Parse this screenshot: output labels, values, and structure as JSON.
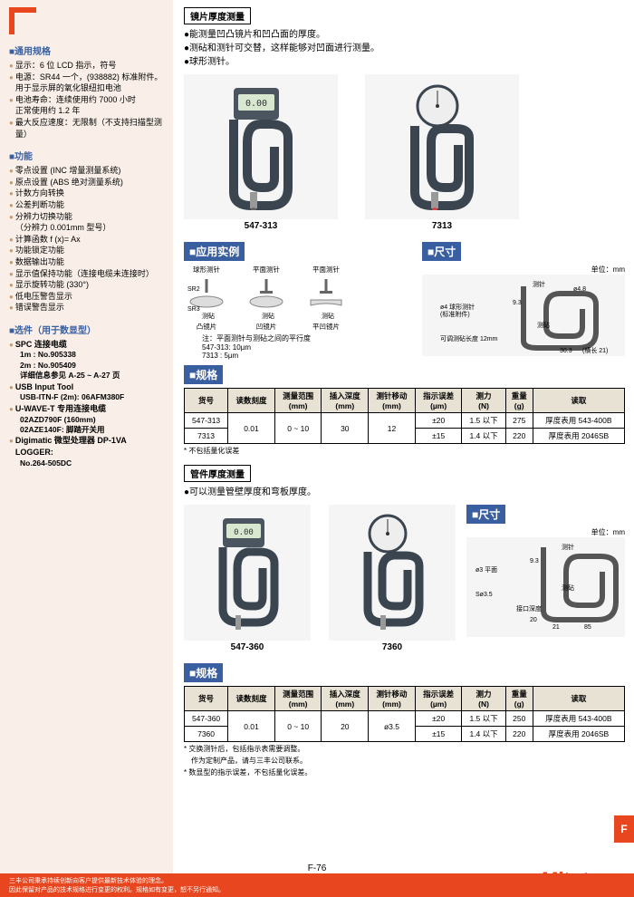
{
  "left": {
    "general_title": "■通用规格",
    "general": [
      {
        "label": "显示：",
        "text": "6 位 LCD 指示，符号"
      },
      {
        "label": "电源：",
        "text": "SR44 一个，(938882) 标准附件。用于显示屏的氧化银纽扣电池"
      },
      {
        "label": "电池寿命：",
        "text": "连续使用约 7000 小时\n正常使用约 1.2 年"
      },
      {
        "label": "最大反应速度：",
        "text": "无限制（不支持扫描型测量）"
      }
    ],
    "func_title": "■功能",
    "func": [
      "零点设置 (INC 增量测量系统)",
      "原点设置 (ABS 绝对测量系统)",
      "计数方向转换",
      "公差判断功能",
      "分辨力切换功能\n（分辨力 0.001mm 型号）",
      "计算函数 f (x)= Ax",
      "功能锁定功能",
      "数据输出功能",
      "显示值保持功能（连接电缆未连接时）",
      "显示旋转功能 (330°)",
      "低电压警告显示",
      "错误警告显示"
    ],
    "opt_title": "■选件（用于数显型）",
    "opt": [
      {
        "b": "SPC 连接电缆",
        "subs": [
          "1m : No.905338",
          "2m : No.905409",
          "详细信息参见 A-25 ~ A-27 页"
        ]
      },
      {
        "b": "USB Input Tool",
        "subs": [
          "USB-ITN-F (2m): 06AFM380F"
        ]
      },
      {
        "b": "U-WAVE-T 专用连接电缆",
        "subs": [
          "02AZD790F (160mm)",
          "02AZE140F: 脚踏开关用"
        ]
      },
      {
        "b": "Digimatic 微型处理器 DP-1VA LOGGER:",
        "subs": [
          "No.264-505DC"
        ]
      }
    ]
  },
  "lens": {
    "box_title": "镜片厚度测量",
    "desc": [
      "●能测量凹凸镜片和凹凸面的厚度。",
      "●测砧和测针可交替，这样能够对凹面进行测量。",
      "●球形测针。"
    ],
    "p1": "547-313",
    "p2": "7313",
    "app_title": "■应用实例",
    "app_labels": {
      "a": "球形测针",
      "b": "平面测针",
      "c": "平面测针",
      "sr2": "SR2",
      "sr3": "SR3",
      "t1": "测砧",
      "t2": "测砧",
      "t3": "测砧",
      "l1": "凸镜片",
      "l2": "凹镜片",
      "l3": "平凹镜片"
    },
    "app_note": "注：平面测针与测砧之间的平行度\n547-313: 10µm\n7313 : 5µm",
    "dim_title": "■尺寸",
    "dim_unit": "单位：mm",
    "dim_labels": {
      "a": "测针",
      "b": "ø4.8",
      "c": "9.3",
      "d": "ø4 球形测针\n(标准附件)",
      "e": "测砧",
      "f": "30.3",
      "g": "(横长 21)",
      "h": "可调测砧长度 12mm"
    },
    "spec_title": "■规格",
    "th": [
      "货号",
      "读数刻度",
      "测量范围\n(mm)",
      "插入深度\n(mm)",
      "测针移动\n(mm)",
      "指示误差\n(µm)",
      "测力\n(N)",
      "重量\n(g)",
      "读取"
    ],
    "rows": [
      [
        "547-313",
        "0.01",
        "0 ~ 10",
        "30",
        "12",
        "±20",
        "1.5 以下",
        "275",
        "厚度表用 543-400B"
      ],
      [
        "7313",
        "",
        "",
        "",
        "",
        "±15",
        "1.4 以下",
        "220",
        "厚度表用 2046SB"
      ]
    ],
    "note": "* 不包括量化误差"
  },
  "tube": {
    "box_title": "管件厚度测量",
    "desc": [
      "●可以测量管壁厚度和弯板厚度。"
    ],
    "p1": "547-360",
    "p2": "7360",
    "dim_title": "■尺寸",
    "dim_unit": "单位：mm",
    "dim_labels": {
      "a": "测针",
      "b": "9.3",
      "c": "ø3 平面",
      "d": "测砧",
      "e": "Sø3.5",
      "f": "接口深度",
      "g": "20",
      "h": "21",
      "i": "85"
    },
    "spec_title": "■规格",
    "th": [
      "货号",
      "读数刻度",
      "测量范围\n(mm)",
      "插入深度\n(mm)",
      "测针移动\n(mm)",
      "指示误差\n(µm)",
      "测力\n(N)",
      "重量\n(g)",
      "读取"
    ],
    "rows": [
      [
        "547-360",
        "0.01",
        "0 ~ 10",
        "20",
        "ø3.5",
        "±20",
        "1.5 以下",
        "250",
        "厚度表用 543-400B"
      ],
      [
        "7360",
        "",
        "",
        "",
        "",
        "±15",
        "1.4 以下",
        "220",
        "厚度表用 2046SB"
      ]
    ],
    "notes": [
      "* 交换测针后，包括指示表需要调整。",
      "作为定制产品，请与三丰公司联系。",
      "* 数显型的指示误差，不包括量化误差。"
    ]
  },
  "footer": {
    "l1": "三丰公司秉承持续创新向客户提供最新技术体验的理念。",
    "l2": "因此保留对产品的技术规格进行变更的权利。规格如有变更，恕不另行通知。",
    "page": "F-76",
    "logo": "Mitutoyo",
    "tab": "F"
  }
}
